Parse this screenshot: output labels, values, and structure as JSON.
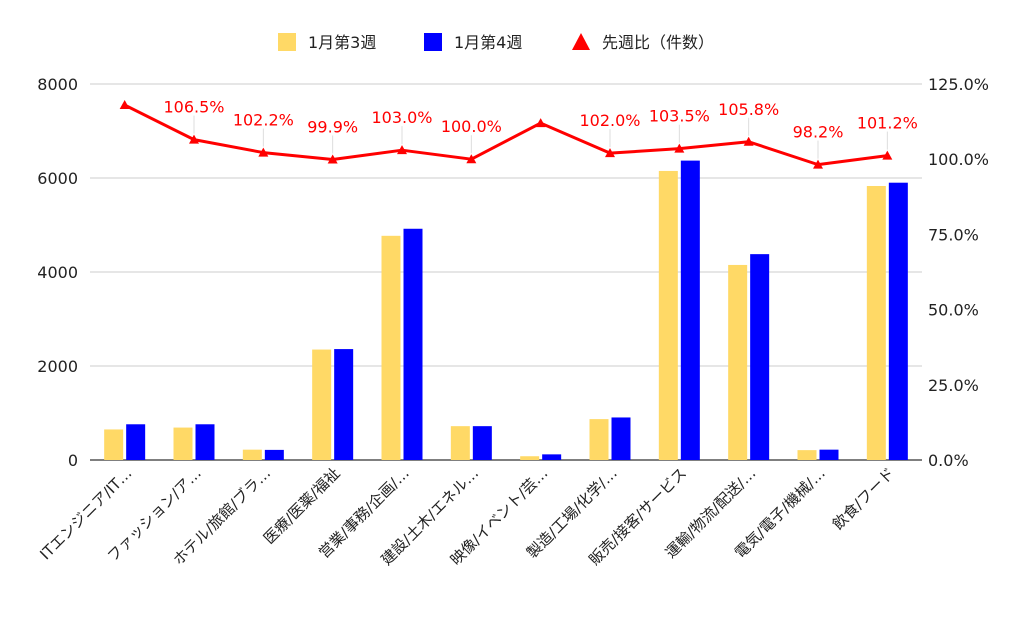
{
  "chart_data": {
    "type": "bar",
    "categories": [
      "ITエンジニア/IT…",
      "ファッション/ア…",
      "ホテル/旅館/ブラ…",
      "医療/医薬/福祉",
      "営業/事務/企画/…",
      "建設/土木/エネル…",
      "映像/イベント/芸…",
      "製造/工場/化学/…",
      "販売/接客/サービス",
      "運輸/物流/配送/…",
      "電気/電子/機械/…",
      "飲食/フード"
    ],
    "series": [
      {
        "name": "1月第3週",
        "type": "bar",
        "axis": "left",
        "color": "#FFD966",
        "values": [
          650,
          690,
          220,
          2350,
          4770,
          720,
          80,
          870,
          6150,
          4150,
          210,
          5830
        ]
      },
      {
        "name": "1月第4週",
        "type": "bar",
        "axis": "left",
        "color": "#0000FF",
        "values": [
          760,
          760,
          215,
          2360,
          4920,
          720,
          120,
          905,
          6370,
          4380,
          220,
          5900
        ]
      },
      {
        "name": "先週比（件数）",
        "type": "line",
        "axis": "right",
        "color": "#FF0000",
        "marker": "triangle",
        "values": [
          118.0,
          106.5,
          102.2,
          99.9,
          103.0,
          100.0,
          112.0,
          102.0,
          103.5,
          105.8,
          98.2,
          101.2
        ],
        "labels": [
          "",
          "106.5%",
          "102.2%",
          "99.9%",
          "103.0%",
          "100.0%",
          "",
          "102.0%",
          "103.5%",
          "105.8%",
          "98.2%",
          "101.2%"
        ]
      }
    ],
    "y_left": {
      "min": 0,
      "max": 8000,
      "ticks": [
        "0",
        "2000",
        "4000",
        "6000",
        "8000"
      ]
    },
    "y_right": {
      "min": 0,
      "max": 125,
      "ticks": [
        "0.0%",
        "25.0%",
        "50.0%",
        "75.0%",
        "100.0%",
        "125.0%"
      ]
    },
    "grid": true,
    "legend_position": "top-center",
    "title": "",
    "xlabel": "",
    "ylabel": ""
  }
}
